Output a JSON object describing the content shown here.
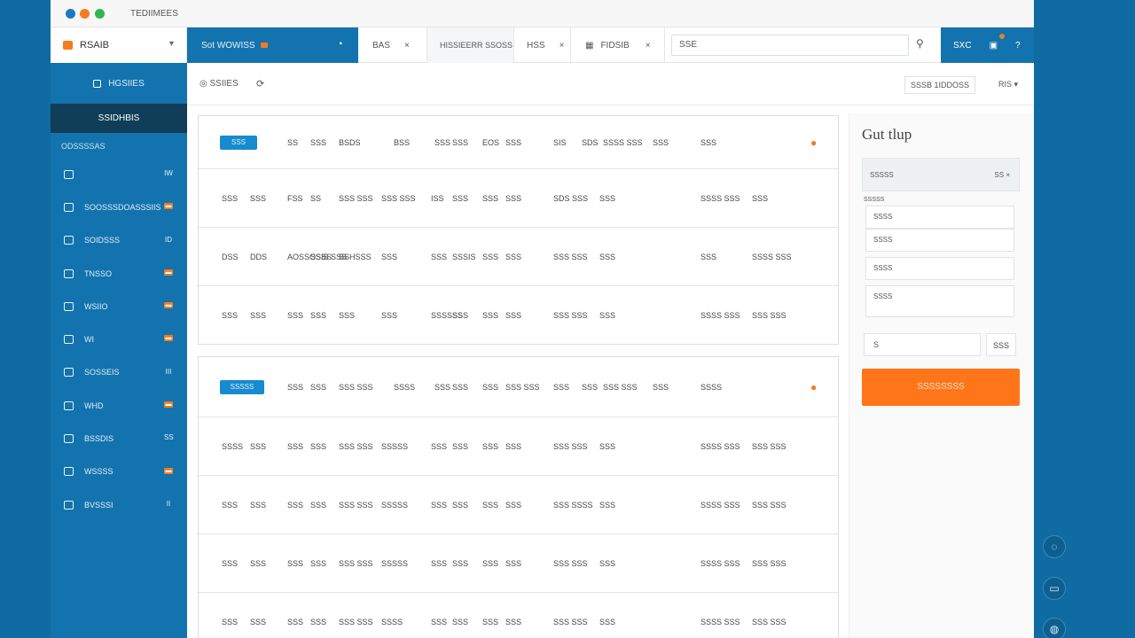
{
  "window": {
    "title": "TEDIIMEES"
  },
  "topbar": {
    "brand": "RSAIB",
    "active_tab": "Sot WOWISS",
    "tabs": [
      {
        "label": "BAS",
        "close": "×"
      },
      {
        "label": "HISSIEERR SSOSS",
        "close": ""
      },
      {
        "label": "HSS",
        "close": "×"
      },
      {
        "label": "FIDSIB",
        "close": "×"
      }
    ],
    "search_value": "SSE",
    "right_label": "SXC"
  },
  "sidebar": {
    "top": "HGSIIES",
    "selected": "SSIDHBIS",
    "section": "ODSSSSAS",
    "items": [
      {
        "label": "",
        "badge": "IW"
      },
      {
        "label": "SOOSSSDOASSSIIS",
        "badge": "▬"
      },
      {
        "label": "SOIDSSS",
        "badge": "ID"
      },
      {
        "label": "TNSSO",
        "badge": "▬"
      },
      {
        "label": "WSIIO",
        "badge": "▬"
      },
      {
        "label": "WI",
        "badge": "▬"
      },
      {
        "label": "SOSSEIS",
        "badge": "III"
      },
      {
        "label": "WHD",
        "badge": "▬"
      },
      {
        "label": "BSSDIS",
        "badge": "SS"
      },
      {
        "label": "WSSSS",
        "badge": "▬"
      },
      {
        "label": "BVSSSI",
        "badge": "II"
      }
    ]
  },
  "subbar": {
    "crumb": "SSIIES",
    "right1": "SSSB 1IDDOSS",
    "right2": "RIS"
  },
  "table1": {
    "pill": "SSS",
    "header": [
      "SS",
      "SSS",
      "BSDS",
      "BSS",
      "SSS",
      "SSS",
      "EOS",
      "SSS",
      "SIS",
      "SDS",
      "SSSS SSS",
      "SSS",
      "SSS"
    ],
    "rows": [
      [
        "SSS",
        "SSS",
        "FSS",
        "SS",
        "SSS SSS",
        "SSS SSS",
        "ISS",
        "SSS",
        "SSS",
        "SSS",
        "SDS SSS",
        "SSS",
        "SSSS SSS",
        "SSS"
      ],
      [
        "DSS",
        "DDS",
        "AOSSOSSS",
        "SSIS SSS",
        "SSHSSS",
        "SSS",
        "SSS",
        "SSSIS",
        "SSS",
        "SSS",
        "SSS SSS",
        "SSS",
        "SSS",
        "SSSS SSS"
      ],
      [
        "SSS",
        "SSS",
        "SSS",
        "SSS",
        "SSS",
        "SSS",
        "SSSSSS",
        "SSS",
        "SSS",
        "SSS",
        "SSS SSS",
        "SSS",
        "SSSS SSS",
        "SSS SSS"
      ]
    ]
  },
  "table2": {
    "pill": "SSSSS",
    "header": [
      "SSS",
      "SSS",
      "SSS SSS",
      "SSSS",
      "SSS",
      "SSS",
      "SSS",
      "SSS SSS",
      "SSS",
      "SSS",
      "SSS SSS",
      "SSS",
      "SSSS"
    ],
    "rows": [
      [
        "SSSS",
        "SSS",
        "SSS",
        "SSS",
        "SSS SSS",
        "SSSSS",
        "SSS",
        "SSS",
        "SSS",
        "SSS",
        "SSS SSS",
        "SSS",
        "SSSS SSS",
        "SSS SSS"
      ],
      [
        "SSS",
        "SSS",
        "SSS",
        "SSS",
        "SSS SSS",
        "SSSSS",
        "SSS",
        "SSS",
        "SSS",
        "SSS",
        "SSS SSSS",
        "SSS",
        "SSSS SSS",
        "SSS SSS"
      ],
      [
        "SSS",
        "SSS",
        "SSS",
        "SSS",
        "SSS SSS",
        "SSSSS",
        "SSS",
        "SSS",
        "SSS",
        "SSS",
        "SSS SSS",
        "SSS",
        "SSSS SSS",
        "SSS SSS"
      ],
      [
        "SSS",
        "SSS",
        "SSS",
        "SSS",
        "SSS SSS",
        "SSSS",
        "SSS",
        "SSS",
        "SSS",
        "SSS",
        "SSS SSS",
        "SSS",
        "SSSS SSS",
        "SSS SSS"
      ]
    ]
  },
  "right_panel": {
    "title": "Gut tlup",
    "head_left": "SSSSS",
    "head_right": "SS ×",
    "label": "SSSSS",
    "fields": [
      "SSSS",
      "SSSS",
      "SSSS",
      "SSSS"
    ],
    "input_value": "S",
    "go_label": "SSS",
    "cta": "SSSSSSSS"
  },
  "colors": {
    "brand_blue": "#1373ae",
    "dark_blue": "#103e58",
    "accent_orange": "#ff7519"
  },
  "icons": [
    "search-icon",
    "bell-icon",
    "help-icon",
    "chat-icon",
    "message-icon",
    "settings-icon"
  ]
}
